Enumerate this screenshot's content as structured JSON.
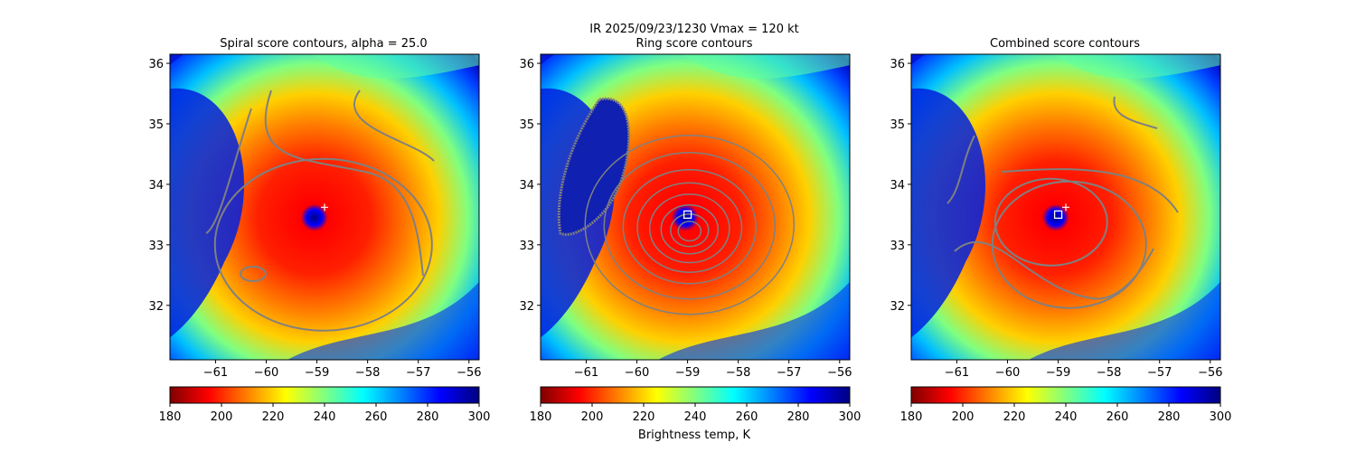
{
  "suptitle": "IR  2025/09/23/1230    Vmax = 120 kt",
  "colorbar_label": "Brightness temp, K",
  "chart_data": [
    {
      "type": "heatmap",
      "title": "Spiral score contours, alpha = 25.0",
      "xlim": [
        -61.9,
        -55.8
      ],
      "ylim": [
        31.1,
        36.15
      ],
      "xticks": [
        -61,
        -60,
        -59,
        -58,
        -57,
        -56
      ],
      "yticks": [
        32,
        33,
        34,
        35,
        36
      ],
      "center": {
        "lon": -59.05,
        "lat": 33.45
      },
      "plus_marker": {
        "lon": -58.85,
        "lat": 33.62
      },
      "color_range": [
        180,
        300
      ],
      "colorbar_ticks": [
        180,
        200,
        220,
        240,
        260,
        280,
        300
      ]
    },
    {
      "type": "heatmap",
      "title": "Ring score contours",
      "xlim": [
        -61.9,
        -55.8
      ],
      "ylim": [
        31.1,
        36.15
      ],
      "xticks": [
        -61,
        -60,
        -59,
        -58,
        -57,
        -56
      ],
      "yticks": [
        32,
        33,
        34,
        35,
        36
      ],
      "center": {
        "lon": -59.05,
        "lat": 33.45
      },
      "square_marker": {
        "lon": -59.0,
        "lat": 33.5
      },
      "color_range": [
        180,
        300
      ],
      "colorbar_ticks": [
        180,
        200,
        220,
        240,
        260,
        280,
        300
      ]
    },
    {
      "type": "heatmap",
      "title": "Combined score contours",
      "xlim": [
        -61.9,
        -55.8
      ],
      "ylim": [
        31.1,
        36.15
      ],
      "xticks": [
        -61,
        -60,
        -59,
        -58,
        -57,
        -56
      ],
      "yticks": [
        32,
        33,
        34,
        35,
        36
      ],
      "center": {
        "lon": -59.05,
        "lat": 33.45
      },
      "plus_marker": {
        "lon": -58.85,
        "lat": 33.62
      },
      "square_marker": {
        "lon": -59.0,
        "lat": 33.5
      },
      "color_range": [
        180,
        300
      ],
      "colorbar_ticks": [
        180,
        200,
        220,
        240,
        260,
        280,
        300
      ]
    }
  ],
  "colors": {
    "contour": "#808080",
    "colormap": "jet_r"
  }
}
